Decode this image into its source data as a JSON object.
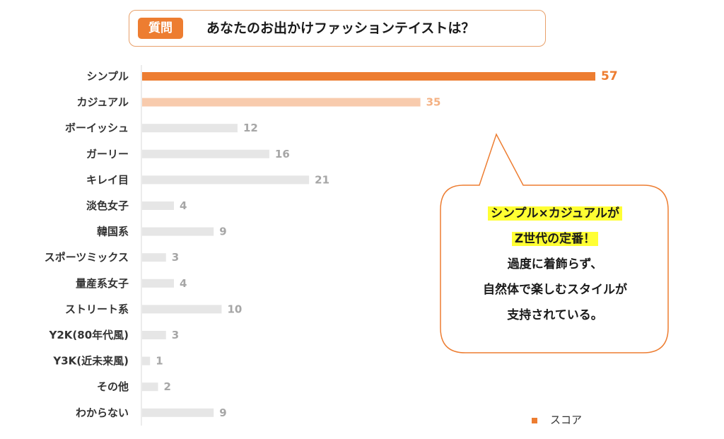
{
  "question": {
    "badge": "質問",
    "text": "あなたのお出かけファッションテイストは？"
  },
  "chart_data": {
    "type": "bar",
    "orientation": "horizontal",
    "categories": [
      "シンプル",
      "カジュアル",
      "ボーイッシュ",
      "ガーリー",
      "キレイ目",
      "淡色女子",
      "韓国系",
      "スポーツミックス",
      "量産系女子",
      "ストリート系",
      "Y2K(80年代風)",
      "Y3K(近未来風)",
      "その他",
      "わからない"
    ],
    "series": [
      {
        "name": "スコア",
        "values": [
          57,
          35,
          12,
          16,
          21,
          4,
          9,
          3,
          4,
          10,
          3,
          1,
          2,
          9
        ]
      }
    ],
    "xlim": [
      0,
      57
    ],
    "grid": false,
    "legend_position": "bottom-right",
    "colors": {
      "top1": "#ed7d31",
      "top2": "#f8cbad",
      "other": "#e6e6e6",
      "top1_label": "#ed7d31",
      "top2_label": "#f4b183",
      "other_label": "#a6a6a6"
    }
  },
  "legend": {
    "label": "スコア"
  },
  "callout": {
    "lines": [
      {
        "text": "シンプル×カジュアルが",
        "highlight": true
      },
      {
        "text": "Z世代の定番！",
        "highlight": true
      },
      {
        "text": "過度に着飾らず、",
        "highlight": false
      },
      {
        "text": "自然体で楽しむスタイルが",
        "highlight": false
      },
      {
        "text": "支持されている。",
        "highlight": false
      }
    ]
  }
}
